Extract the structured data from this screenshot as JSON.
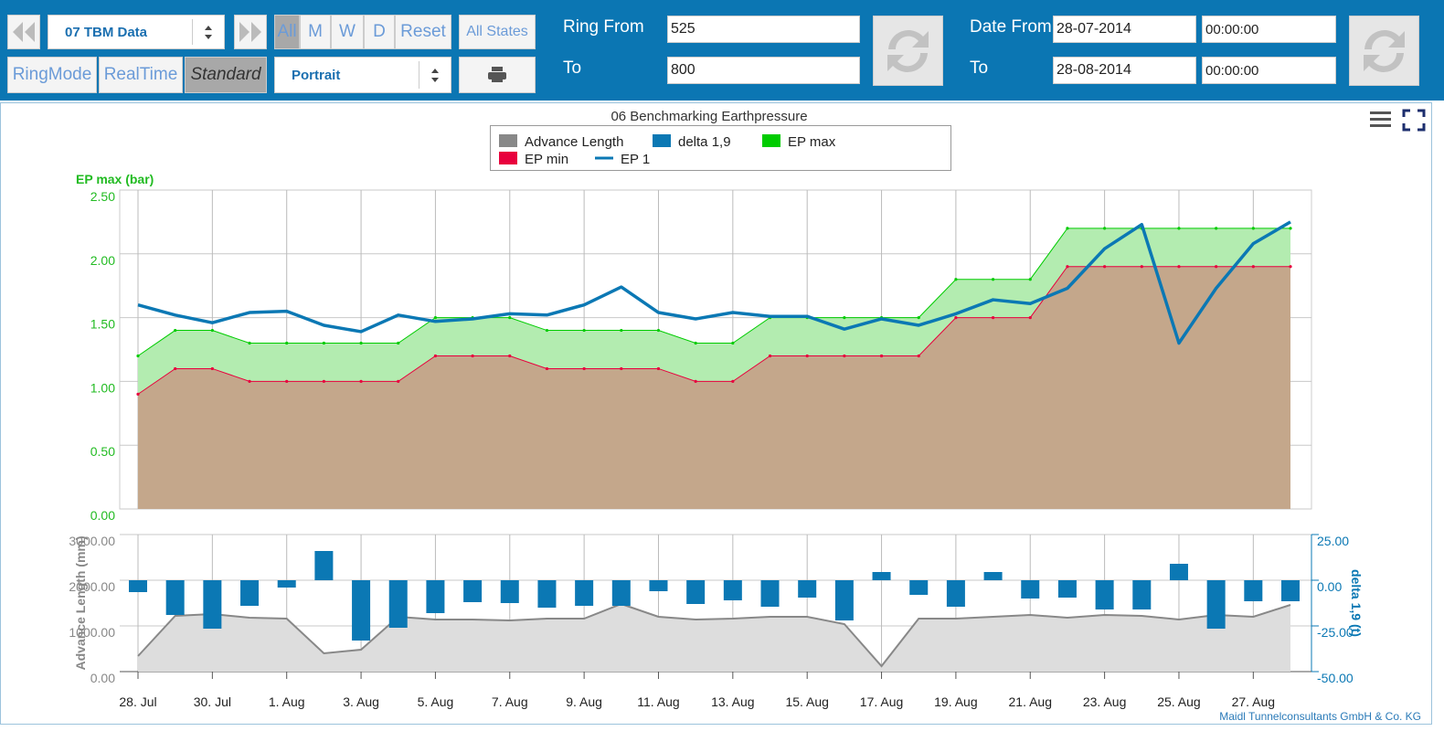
{
  "toolbar": {
    "dataset": "07 TBM Data",
    "periods": [
      "All",
      "M",
      "W",
      "D"
    ],
    "reset": "Reset",
    "states": "All States",
    "modes": [
      "RingMode",
      "RealTime",
      "Standard"
    ],
    "orientation": "Portrait",
    "ring_from_label": "Ring From",
    "ring_from": "525",
    "ring_to_label": "To",
    "ring_to": "800",
    "date_from_label": "Date From",
    "date_from": "28-07-2014",
    "time_from": "00:00:00",
    "date_to_label": "To",
    "date_to": "28-08-2014",
    "time_to": "00:00:00"
  },
  "footer": "Maidl Tunnelconsultants GmbH & Co. KG",
  "chart_data": [
    {
      "type": "area",
      "title": "06 Benchmarking Earthpressure",
      "ylabel": "EP max (bar)",
      "ylim": [
        0,
        2.5
      ],
      "yticks": [
        {
          "value": 0,
          "label": "0.00"
        },
        {
          "value": 0.5,
          "label": "0.50"
        },
        {
          "value": 1,
          "label": "1.00"
        },
        {
          "value": 1.5,
          "label": "1.50"
        },
        {
          "value": 2,
          "label": "2.00"
        },
        {
          "value": 2.5,
          "label": "2.50"
        }
      ],
      "grid": true,
      "series": [
        {
          "name": "EP max",
          "color": "#00cc00",
          "fill": "#b3ecb0",
          "marker": true,
          "values": [
            1.2,
            1.4,
            1.4,
            1.3,
            1.3,
            1.3,
            1.3,
            1.3,
            1.5,
            1.5,
            1.5,
            1.4,
            1.4,
            1.4,
            1.4,
            1.3,
            1.3,
            1.5,
            1.5,
            1.5,
            1.5,
            1.5,
            1.8,
            1.8,
            1.8,
            2.2,
            2.2,
            2.2,
            2.2,
            2.2,
            2.2,
            2.2
          ]
        },
        {
          "name": "EP min",
          "color": "#e8003d",
          "fill": "#c4a78b",
          "marker": true,
          "values": [
            0.9,
            1.1,
            1.1,
            1.0,
            1.0,
            1.0,
            1.0,
            1.0,
            1.2,
            1.2,
            1.2,
            1.1,
            1.1,
            1.1,
            1.1,
            1.0,
            1.0,
            1.2,
            1.2,
            1.2,
            1.2,
            1.2,
            1.5,
            1.5,
            1.5,
            1.9,
            1.9,
            1.9,
            1.9,
            1.9,
            1.9,
            1.9
          ]
        },
        {
          "name": "EP 1",
          "type": "line",
          "color": "#0b78b4",
          "values": [
            1.6,
            1.52,
            1.46,
            1.54,
            1.55,
            1.44,
            1.39,
            1.52,
            1.47,
            1.49,
            1.53,
            1.52,
            1.6,
            1.74,
            1.54,
            1.49,
            1.54,
            1.51,
            1.51,
            1.41,
            1.49,
            1.44,
            1.53,
            1.64,
            1.61,
            1.73,
            2.04,
            2.23,
            1.3,
            1.73,
            2.08,
            2.25
          ]
        }
      ]
    },
    {
      "type": "bar",
      "ylabel": "Advance Length (mm)",
      "y2label": "delta 1,9 (t)",
      "categories": [
        "28. Jul",
        null,
        "30. Jul",
        null,
        "1. Aug",
        null,
        "3. Aug",
        null,
        "5. Aug",
        null,
        "7. Aug",
        null,
        "9. Aug",
        null,
        "11. Aug",
        null,
        "13. Aug",
        null,
        "15. Aug",
        null,
        "17. Aug",
        null,
        "19. Aug",
        null,
        "21. Aug",
        null,
        "23. Aug",
        null,
        "25. Aug",
        null,
        "27. Aug",
        null
      ],
      "ylim": [
        0,
        3000
      ],
      "yticks": [
        {
          "value": 0,
          "label": "0.00"
        },
        {
          "value": 1000,
          "label": "1000.00"
        },
        {
          "value": 2000,
          "label": "2000.00"
        },
        {
          "value": 3000,
          "label": "3000.00"
        }
      ],
      "y2lim": [
        -50,
        25
      ],
      "y2ticks": [
        {
          "value": -50,
          "label": "-50.00"
        },
        {
          "value": -25,
          "label": "-25.00"
        },
        {
          "value": 0,
          "label": "0.00"
        },
        {
          "value": 25,
          "label": "25.00"
        }
      ],
      "grid": true,
      "series": [
        {
          "name": "Advance Length",
          "type": "area",
          "color": "#888888",
          "fill": "#dddddd",
          "values": [
            340,
            1220,
            1260,
            1180,
            1160,
            400,
            480,
            1200,
            1140,
            1140,
            1120,
            1160,
            1160,
            1480,
            1200,
            1140,
            1160,
            1200,
            1200,
            1040,
            120,
            1160,
            1160,
            1200,
            1240,
            1180,
            1240,
            1220,
            1140,
            1240,
            1200,
            1460
          ]
        },
        {
          "name": "delta 1,9",
          "color": "#0b78b4",
          "axis": "y2",
          "values": [
            -6.5,
            -19,
            -26.5,
            -14,
            -4,
            16,
            -33,
            -26,
            -18,
            -12,
            -12.5,
            -15,
            -14,
            -14,
            -6,
            -13,
            -11,
            -14.5,
            -9.5,
            -22,
            4.5,
            -8,
            -14.5,
            4.5,
            -10,
            -9.5,
            -16,
            -16,
            9,
            -26.5,
            -11.5,
            -11.5
          ]
        }
      ]
    }
  ]
}
